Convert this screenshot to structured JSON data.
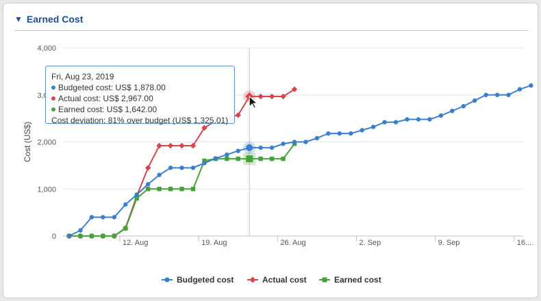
{
  "panel": {
    "title": "Earned Cost",
    "caret_icon": "triangle-down"
  },
  "chart_data": {
    "type": "line",
    "ylabel": "Cost (US$)",
    "ylim": [
      0,
      4000
    ],
    "yticks": [
      0,
      1000,
      2000,
      3000,
      4000
    ],
    "ytick_labels": [
      "0",
      "1,000",
      "2,000",
      "3,000",
      "4,000"
    ],
    "x_start": "2019-08-07",
    "xticks": [
      {
        "date": "2019-08-12",
        "label": "12. Aug"
      },
      {
        "date": "2019-08-19",
        "label": "19. Aug"
      },
      {
        "date": "2019-08-26",
        "label": "26. Aug"
      },
      {
        "date": "2019-09-02",
        "label": "2. Sep"
      },
      {
        "date": "2019-09-09",
        "label": "9. Sep"
      },
      {
        "date": "2019-09-16",
        "label": "16...."
      }
    ],
    "highlight_date": "2019-08-23",
    "series": [
      {
        "name": "Budgeted cost",
        "color": "#3b7fcc",
        "marker": "circle",
        "x": [
          "2019-08-07",
          "2019-08-08",
          "2019-08-09",
          "2019-08-10",
          "2019-08-11",
          "2019-08-12",
          "2019-08-13",
          "2019-08-14",
          "2019-08-15",
          "2019-08-16",
          "2019-08-17",
          "2019-08-18",
          "2019-08-19",
          "2019-08-20",
          "2019-08-21",
          "2019-08-22",
          "2019-08-23",
          "2019-08-24",
          "2019-08-25",
          "2019-08-26",
          "2019-08-27",
          "2019-08-28",
          "2019-08-29",
          "2019-08-30",
          "2019-08-31",
          "2019-09-01",
          "2019-09-02",
          "2019-09-03",
          "2019-09-04",
          "2019-09-05",
          "2019-09-06",
          "2019-09-07",
          "2019-09-08",
          "2019-09-09",
          "2019-09-10",
          "2019-09-11",
          "2019-09-12",
          "2019-09-13",
          "2019-09-14",
          "2019-09-15",
          "2019-09-16",
          "2019-09-17"
        ],
        "values": [
          0,
          120,
          400,
          400,
          400,
          670,
          880,
          1100,
          1300,
          1450,
          1450,
          1450,
          1550,
          1650,
          1730,
          1810,
          1878,
          1878,
          1878,
          1960,
          2000,
          2000,
          2080,
          2180,
          2180,
          2180,
          2250,
          2320,
          2420,
          2420,
          2480,
          2480,
          2480,
          2560,
          2660,
          2760,
          2880,
          3000,
          3000,
          3000,
          3120,
          3200
        ]
      },
      {
        "name": "Actual cost",
        "color": "#d6444c",
        "marker": "diamond",
        "x": [
          "2019-08-07",
          "2019-08-08",
          "2019-08-09",
          "2019-08-10",
          "2019-08-11",
          "2019-08-12",
          "2019-08-13",
          "2019-08-14",
          "2019-08-15",
          "2019-08-16",
          "2019-08-17",
          "2019-08-18",
          "2019-08-19",
          "2019-08-20",
          "2019-08-21",
          "2019-08-22",
          "2019-08-23",
          "2019-08-24",
          "2019-08-25",
          "2019-08-26",
          "2019-08-27"
        ],
        "values": [
          0,
          0,
          0,
          0,
          0,
          170,
          850,
          1450,
          1920,
          1920,
          1920,
          1920,
          2300,
          2450,
          2500,
          2570,
          2967,
          2967,
          2967,
          2967,
          3120
        ]
      },
      {
        "name": "Earned cost",
        "color": "#46a03c",
        "marker": "square",
        "x": [
          "2019-08-07",
          "2019-08-08",
          "2019-08-09",
          "2019-08-10",
          "2019-08-11",
          "2019-08-12",
          "2019-08-13",
          "2019-08-14",
          "2019-08-15",
          "2019-08-16",
          "2019-08-17",
          "2019-08-18",
          "2019-08-19",
          "2019-08-20",
          "2019-08-21",
          "2019-08-22",
          "2019-08-23",
          "2019-08-24",
          "2019-08-25",
          "2019-08-26",
          "2019-08-27"
        ],
        "values": [
          0,
          0,
          0,
          0,
          0,
          160,
          800,
          1000,
          1000,
          1000,
          1000,
          1000,
          1600,
          1642,
          1642,
          1642,
          1642,
          1642,
          1642,
          1642,
          1960
        ]
      }
    ],
    "legend_position": "bottom-center",
    "grid": "horizontal"
  },
  "tooltip": {
    "date": "Fri, Aug 23, 2019",
    "lines": [
      {
        "text": "Budgeted cost: US$ 1,878.00",
        "color": "#3b7fcc"
      },
      {
        "text": "Actual cost: US$ 2,967.00",
        "color": "#d6444c"
      },
      {
        "text": "Earned cost: US$ 1,642.00",
        "color": "#46a03c"
      }
    ],
    "deviation": "Cost deviation: 81% over budget (US$ 1,325.01)"
  }
}
